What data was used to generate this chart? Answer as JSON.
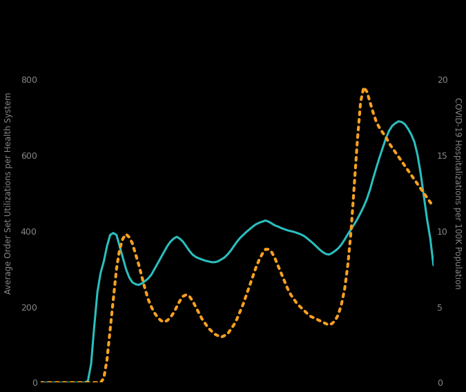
{
  "background_color": "#000000",
  "plot_bg_color": "#000000",
  "teal_color": "#2bbfbf",
  "orange_color": "#f5a020",
  "left_ylabel": "Average Order Set Utilizations per Health System",
  "right_ylabel": "COVID-19 Hospitalizations per 100K Population",
  "left_ylim": [
    0,
    1000
  ],
  "right_ylim": [
    0,
    25
  ],
  "left_yticks": [
    0,
    200,
    400,
    600,
    800
  ],
  "right_yticks": [
    0,
    5,
    10,
    15,
    20
  ],
  "tick_label_color": "#888888",
  "ylabel_color": "#888888",
  "teal_data": [
    0,
    0,
    0,
    0,
    0,
    0,
    0,
    0,
    0,
    0,
    0,
    0,
    0,
    0,
    0,
    5,
    50,
    150,
    240,
    290,
    320,
    360,
    390,
    395,
    390,
    360,
    330,
    300,
    278,
    265,
    260,
    258,
    262,
    268,
    275,
    285,
    300,
    315,
    330,
    345,
    360,
    372,
    380,
    385,
    380,
    372,
    360,
    348,
    338,
    332,
    328,
    325,
    322,
    320,
    318,
    318,
    320,
    325,
    330,
    338,
    348,
    360,
    372,
    382,
    390,
    398,
    405,
    412,
    418,
    422,
    425,
    428,
    425,
    420,
    415,
    412,
    408,
    405,
    402,
    400,
    398,
    395,
    392,
    388,
    382,
    375,
    368,
    360,
    352,
    345,
    340,
    338,
    342,
    348,
    355,
    365,
    378,
    392,
    405,
    418,
    432,
    448,
    465,
    485,
    510,
    540,
    568,
    595,
    620,
    645,
    665,
    678,
    685,
    690,
    688,
    682,
    670,
    655,
    635,
    600,
    550,
    490,
    430,
    380,
    310
  ],
  "orange_data": [
    0,
    0,
    0,
    0,
    0,
    0,
    0,
    0,
    0,
    0,
    0,
    0,
    0,
    0,
    0,
    0,
    0,
    0,
    0,
    0,
    0.3,
    1.5,
    3.5,
    5.5,
    7.5,
    8.8,
    9.5,
    9.8,
    9.6,
    9.2,
    8.5,
    7.8,
    7.0,
    6.2,
    5.5,
    5.0,
    4.6,
    4.3,
    4.1,
    4.0,
    4.1,
    4.3,
    4.6,
    5.0,
    5.4,
    5.7,
    5.8,
    5.7,
    5.4,
    5.0,
    4.6,
    4.2,
    3.9,
    3.6,
    3.4,
    3.2,
    3.1,
    3.0,
    3.1,
    3.2,
    3.5,
    3.8,
    4.2,
    4.7,
    5.2,
    5.8,
    6.4,
    7.0,
    7.6,
    8.1,
    8.5,
    8.8,
    8.8,
    8.6,
    8.2,
    7.7,
    7.2,
    6.7,
    6.2,
    5.8,
    5.5,
    5.2,
    5.0,
    4.8,
    4.6,
    4.4,
    4.3,
    4.2,
    4.1,
    4.0,
    3.9,
    3.8,
    3.9,
    4.1,
    4.5,
    5.2,
    6.2,
    7.8,
    10.0,
    13.0,
    16.0,
    18.5,
    19.5,
    19.2,
    18.5,
    17.8,
    17.2,
    16.8,
    16.5,
    16.2,
    15.8,
    15.5,
    15.2,
    14.9,
    14.6,
    14.3,
    14.0,
    13.7,
    13.4,
    13.1,
    12.8,
    12.5,
    12.2,
    11.9,
    11.6
  ]
}
